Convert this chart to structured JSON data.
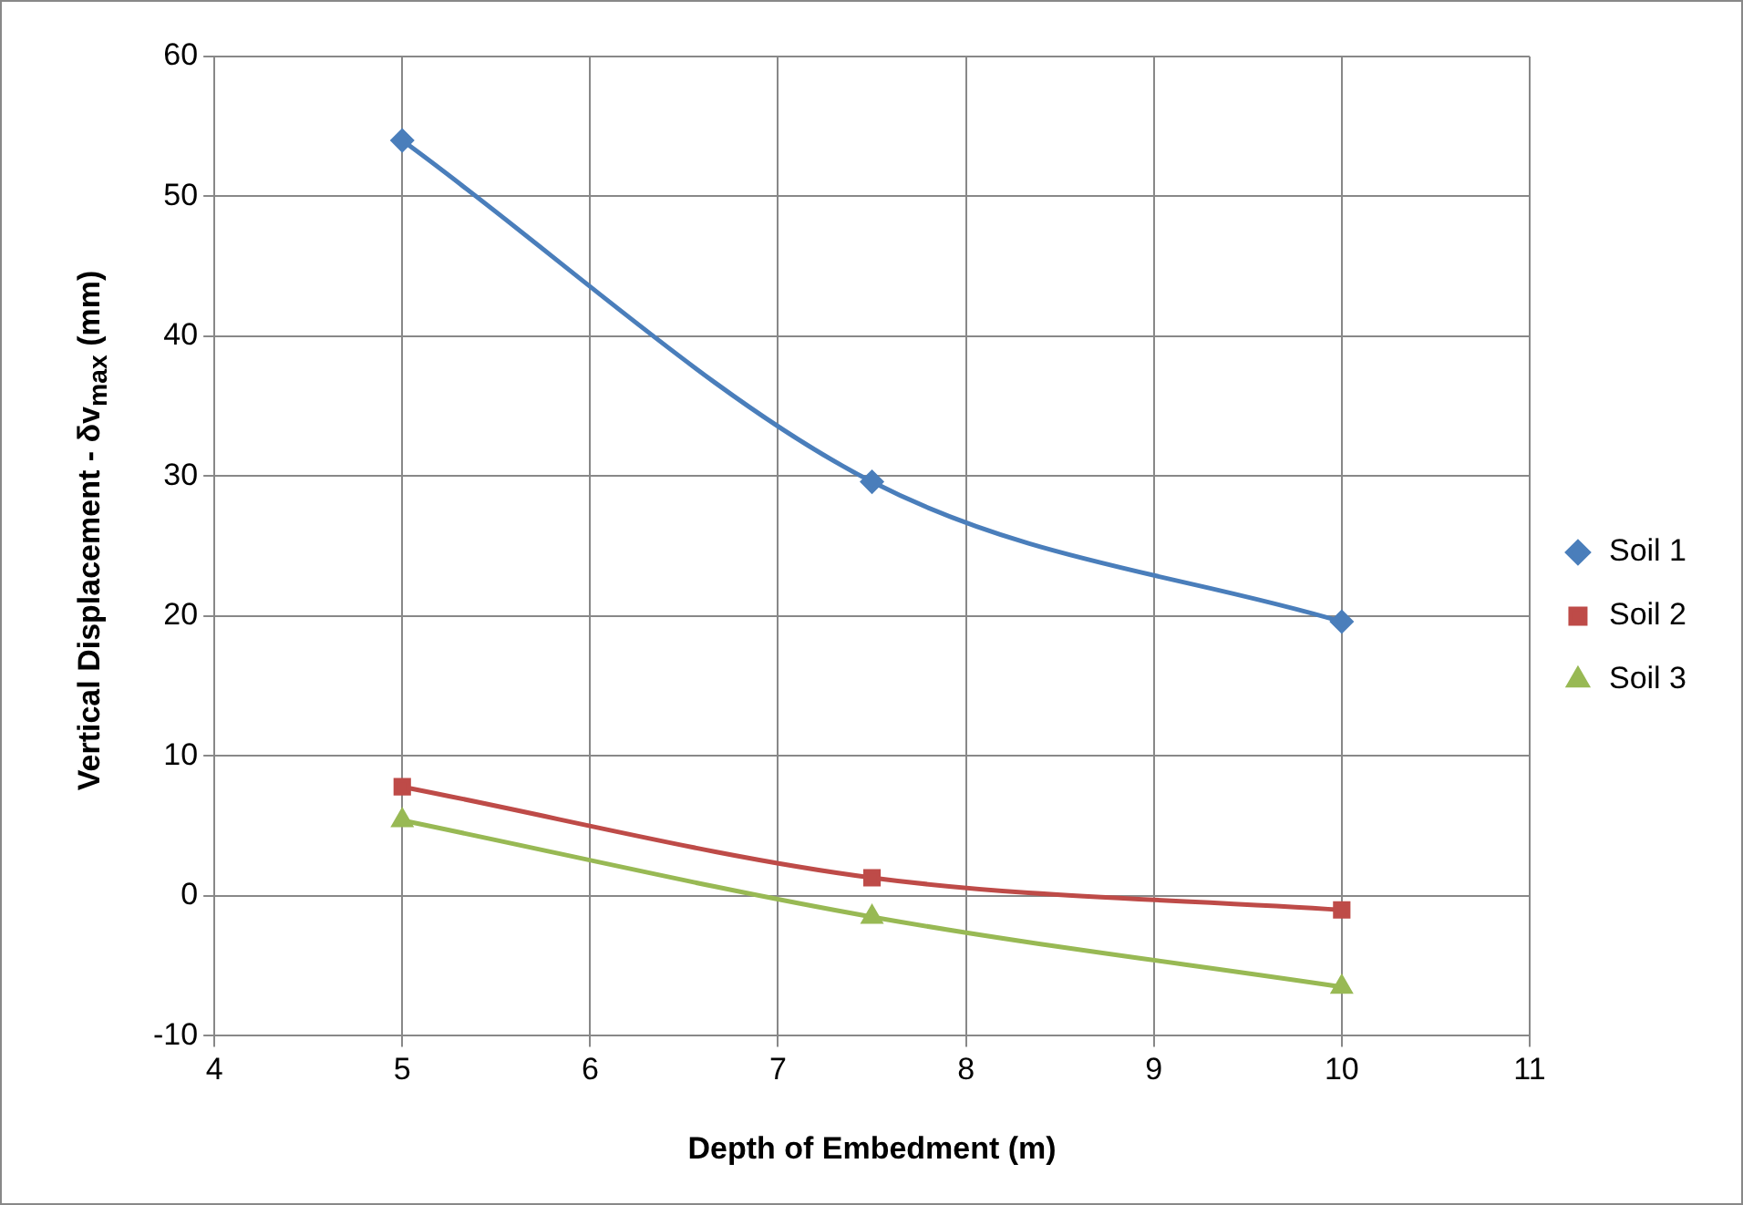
{
  "chart_data": {
    "type": "line",
    "xlabel": "Depth of Embedment (m)",
    "ylabel": "Vertical Displacement - δv$_{max}$ (mm)",
    "x": [
      5,
      7.5,
      10
    ],
    "series": [
      {
        "name": "Soil 1",
        "color": "#4a7ebb",
        "values": [
          54,
          29.6,
          19.6
        ],
        "marker": "diamond"
      },
      {
        "name": "Soil 2",
        "color": "#be4b48",
        "values": [
          7.8,
          1.3,
          -1
        ],
        "marker": "square"
      },
      {
        "name": "Soil 3",
        "color": "#98b954",
        "values": [
          5.4,
          -1.5,
          -6.5
        ],
        "marker": "triangle"
      }
    ],
    "xlim": [
      4,
      11
    ],
    "xticks": [
      4,
      5,
      6,
      7,
      8,
      9,
      10,
      11
    ],
    "ylim": [
      -10,
      60
    ],
    "yticks": [
      -10,
      0,
      10,
      20,
      30,
      40,
      50,
      60
    ],
    "grid": true,
    "legend": "right",
    "line_style": "solid"
  }
}
